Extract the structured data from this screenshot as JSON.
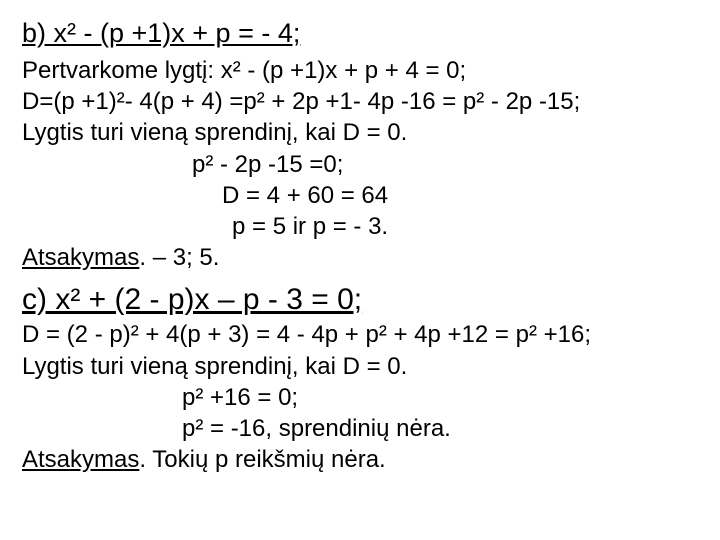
{
  "section_b": {
    "heading": "b) x² - (p +1)x + p = - 4;",
    "line1": "Pertvarkome lygtį:   x² - (p +1)x + p + 4 = 0;",
    "line2": "D=(p +1)²- 4(p + 4) =p² + 2p +1- 4p -16 = p² - 2p -15;",
    "line3": "Lygtis turi vieną sprendinį, kai D = 0.",
    "line4": "p² - 2p -15 =0;",
    "line5": "D = 4 + 60 = 64",
    "line6": "p = 5 ir p = - 3.",
    "answer_label": "Atsakymas",
    "answer_rest": ". – 3; 5."
  },
  "section_c": {
    "heading": "c) x² + (2 - p)x – p - 3 = 0;",
    "line1": "D = (2 - p)² + 4(p + 3) = 4 - 4p + p² + 4p +12 = p² +16;",
    "line2": "Lygtis turi vieną sprendinį, kai D = 0.",
    "line3": "p² +16 = 0;",
    "line4": "p² = -16, sprendinių nėra.",
    "answer_label": "Atsakymas",
    "answer_rest": ". Tokių  p reikšmių nėra."
  }
}
